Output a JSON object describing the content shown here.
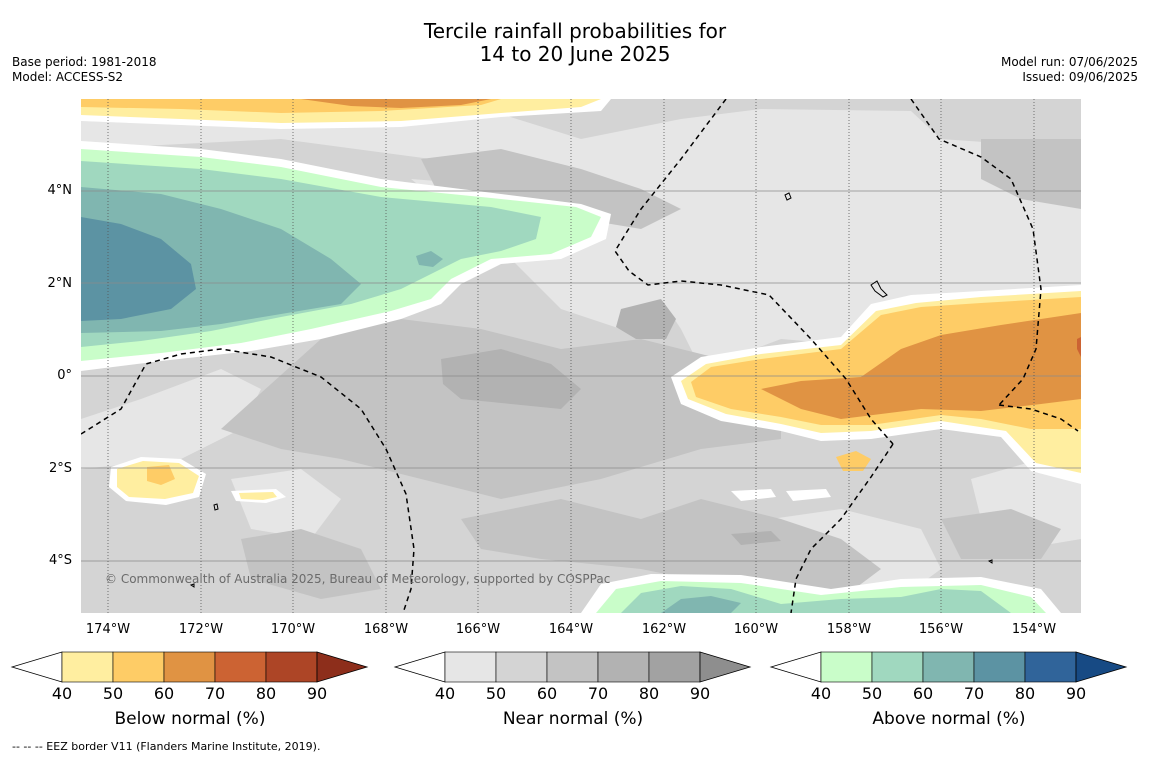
{
  "title": {
    "line1": "Tercile rainfall probabilities for",
    "line2": "14 to 20 June 2025"
  },
  "meta": {
    "base_period": "Base period: 1981-2018",
    "model": "Model: ACCESS-S2",
    "model_run": "Model run: 07/06/2025",
    "issued": "Issued: 09/06/2025"
  },
  "map": {
    "lon_labels": [
      "174°W",
      "172°W",
      "170°W",
      "168°W",
      "166°W",
      "164°W",
      "162°W",
      "160°W",
      "158°W",
      "156°W",
      "154°W"
    ],
    "lat_labels": [
      "4°N",
      "2°N",
      "0°",
      "2°S",
      "4°S"
    ],
    "copyright": "© Commonwealth of Australia 2025, Bureau of Meteorology, supported by COSPPac"
  },
  "colorbars": [
    {
      "title": "Below normal (%)",
      "ticks": [
        "40",
        "50",
        "60",
        "70",
        "80",
        "90"
      ],
      "colors": [
        "#ffeea0",
        "#fecc66",
        "#e09343",
        "#cc6333",
        "#ad4526",
        "#8d2e1b"
      ]
    },
    {
      "title": "Near normal (%)",
      "ticks": [
        "40",
        "50",
        "60",
        "70",
        "80",
        "90"
      ],
      "colors": [
        "#e6e6e6",
        "#d4d4d4",
        "#c3c3c3",
        "#b2b2b2",
        "#a2a2a2",
        "#8e8e8e"
      ]
    },
    {
      "title": "Above normal (%)",
      "ticks": [
        "40",
        "50",
        "60",
        "70",
        "80",
        "90"
      ],
      "colors": [
        "#c9fdc9",
        "#a0d8bf",
        "#80b6b0",
        "#5c93a3",
        "#30649a",
        "#174a84"
      ]
    }
  ],
  "footnote": "--  --  -- EEZ border V11 (Flanders Marine Institute, 2019)."
}
